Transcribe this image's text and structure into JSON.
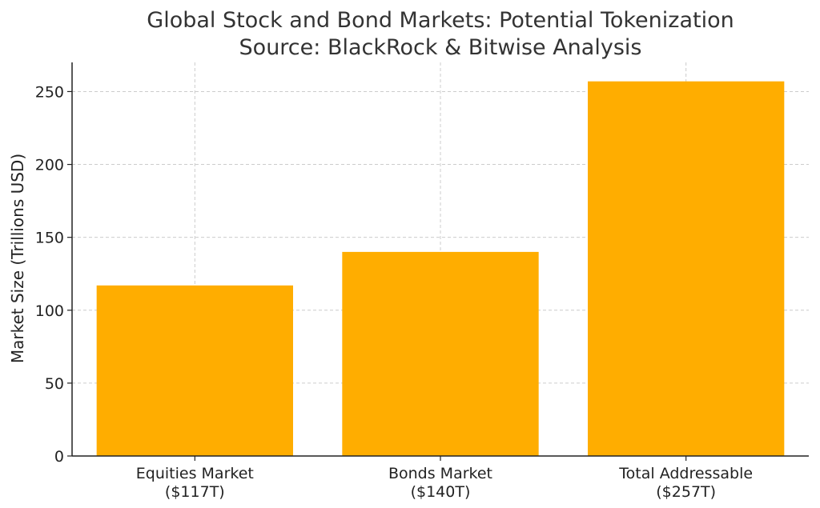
{
  "chart_data": {
    "type": "bar",
    "title": "Global Stock and Bond Markets: Potential Tokenization",
    "subtitle": "Source: BlackRock & Bitwise Analysis",
    "xlabel": "",
    "ylabel": "Market Size (Trillions USD)",
    "categories": [
      [
        "Equities Market",
        "($117T)"
      ],
      [
        "Bonds Market",
        "($140T)"
      ],
      [
        "Total Addressable",
        "($257T)"
      ]
    ],
    "values": [
      117,
      140,
      257
    ],
    "ylim": [
      0,
      270
    ],
    "yticks": [
      0,
      50,
      100,
      150,
      200,
      250
    ],
    "grid": true,
    "bar_color": "#ffad00"
  }
}
